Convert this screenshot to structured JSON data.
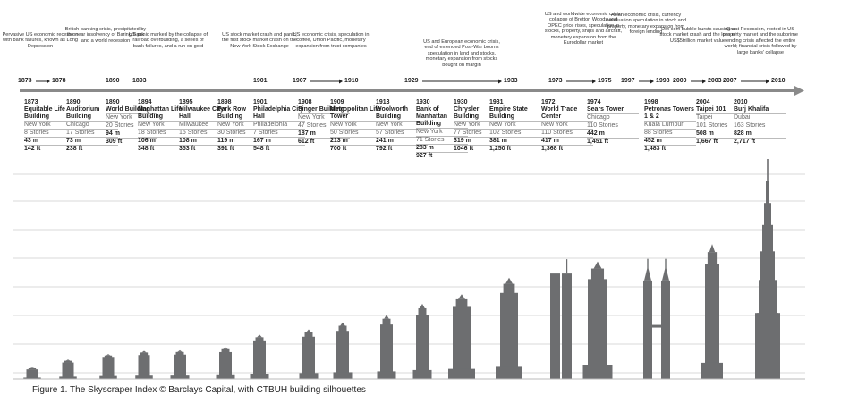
{
  "caption": "Figure 1. The Skyscraper Index © Barclays Capital, with CTBUH building silhouettes",
  "chart_data": {
    "type": "bar",
    "periods": [
      {
        "start": "1873",
        "end": "1878",
        "text": "Pervasive US economic recession with bank failures, known as Long Depression"
      },
      {
        "start": "1890",
        "end": "",
        "text": "British banking crisis, precipitated by the near insolvency of Baring Bank and a world recession"
      },
      {
        "start": "1893",
        "end": "",
        "text": "US panic marked by the collapse of railroad overbuilding, a series of bank failures, and a run on gold"
      },
      {
        "start": "1901",
        "end": "",
        "text": "US stock market crash and panic, the first stock market crash on the New York Stock Exchange"
      },
      {
        "start": "1907",
        "end": "1910",
        "text": "US economic crisis, speculation in coffee, Union Pacific, monetary expansion from trust companies"
      },
      {
        "start": "1929",
        "end": "1933",
        "text": "US and European economic crisis, end of extended Post-War booms speculation in land and stocks, monetary expansion from stocks bought on margin"
      },
      {
        "start": "1973",
        "end": "1975",
        "text": "US and worldwide economic crisis, collapse of Bretton Woods and OPEC price rises, speculation in stocks, property, ships and aircraft, monetary expansion from the Eurodollar market"
      },
      {
        "start": "1997",
        "end": "1998",
        "text": "Asian economic crisis, currency devaluation speculation in stock and property, monetary expansion from foreign lending"
      },
      {
        "start": "2000",
        "end": "2003",
        "text": "Dot-com bubble bursts causing a stock market crash and the loss of US$5trillion market value"
      },
      {
        "start": "2007",
        "end": "2010",
        "text": "Great Recession, rooted in US property market and the subprime lending crisis affected the entire world; financial crisis followed by large banks' collapse"
      }
    ],
    "buildings": [
      {
        "year": "1873",
        "name": "Equitable Life Building",
        "city": "New York",
        "stories": "8 Stories",
        "m": "43 m",
        "ft": "142 ft",
        "height_m": 43
      },
      {
        "year": "1890",
        "name": "Auditorium Building",
        "city": "Chicago",
        "stories": "17 Stories",
        "m": "73 m",
        "ft": "238 ft",
        "height_m": 73
      },
      {
        "year": "1890",
        "name": "World Building",
        "city": "New York",
        "stories": "20 Stories",
        "m": "94 m",
        "ft": "309 ft",
        "height_m": 94
      },
      {
        "year": "1894",
        "name": "Manhattan Life Building",
        "city": "New York",
        "stories": "18 Stories",
        "m": "106 m",
        "ft": "348 ft",
        "height_m": 106
      },
      {
        "year": "1895",
        "name": "Milwaukee City Hall",
        "city": "Milwaukee",
        "stories": "15 Stories",
        "m": "108 m",
        "ft": "353 ft",
        "height_m": 108
      },
      {
        "year": "1898",
        "name": "Park Row Building",
        "city": "New York",
        "stories": "30 Stories",
        "m": "119 m",
        "ft": "391 ft",
        "height_m": 119
      },
      {
        "year": "1901",
        "name": "Philadelphia City Hall",
        "city": "Philadelphia",
        "stories": "7 Stories",
        "m": "167 m",
        "ft": "548 ft",
        "height_m": 167
      },
      {
        "year": "1908",
        "name": "Singer Building",
        "city": "New York",
        "stories": "47 Stories",
        "m": "187 m",
        "ft": "612 ft",
        "height_m": 187
      },
      {
        "year": "1909",
        "name": "Metropolitan Life Tower",
        "city": "New York",
        "stories": "50 Stories",
        "m": "213 m",
        "ft": "700 ft",
        "height_m": 213
      },
      {
        "year": "1913",
        "name": "Woolworth Building",
        "city": "New York",
        "stories": "57 Stories",
        "m": "241 m",
        "ft": "792 ft",
        "height_m": 241
      },
      {
        "year": "1930",
        "name": "Bank of Manhattan Building",
        "city": "New York",
        "stories": "71 Stories",
        "m": "283 m",
        "ft": "927 ft",
        "height_m": 283
      },
      {
        "year": "1930",
        "name": "Chrysler Building",
        "city": "New York",
        "stories": "77 Stories",
        "m": "319 m",
        "ft": "1046 ft",
        "height_m": 319
      },
      {
        "year": "1931",
        "name": "Empire State Building",
        "city": "New York",
        "stories": "102 Stories",
        "m": "381 m",
        "ft": "1,250 ft",
        "height_m": 381
      },
      {
        "year": "1972",
        "name": "World Trade Center",
        "city": "New York",
        "stories": "110 Stories",
        "m": "417 m",
        "ft": "1,368 ft",
        "height_m": 417
      },
      {
        "year": "1974",
        "name": "Sears Tower",
        "city": "Chicago",
        "stories": "110 Stories",
        "m": "442 m",
        "ft": "1,451 ft",
        "height_m": 442
      },
      {
        "year": "1998",
        "name": "Petronas Towers 1 & 2",
        "city": "Kuala Lumpur",
        "stories": "88 Stories",
        "m": "452 m",
        "ft": "1,483 ft",
        "height_m": 452
      },
      {
        "year": "2004",
        "name": "Taipei 101",
        "city": "Taipei",
        "stories": "101 Stories",
        "m": "508 m",
        "ft": "1,667 ft",
        "height_m": 508
      },
      {
        "year": "2010",
        "name": "Burj Khalifa",
        "city": "Dubai",
        "stories": "163 Stories",
        "m": "828 m",
        "ft": "2,717 ft",
        "height_m": 828
      }
    ],
    "colors": {
      "silhouette": "#6d6e70",
      "arrow": "#8a8a8a",
      "grid": "#d9d9d9"
    }
  }
}
